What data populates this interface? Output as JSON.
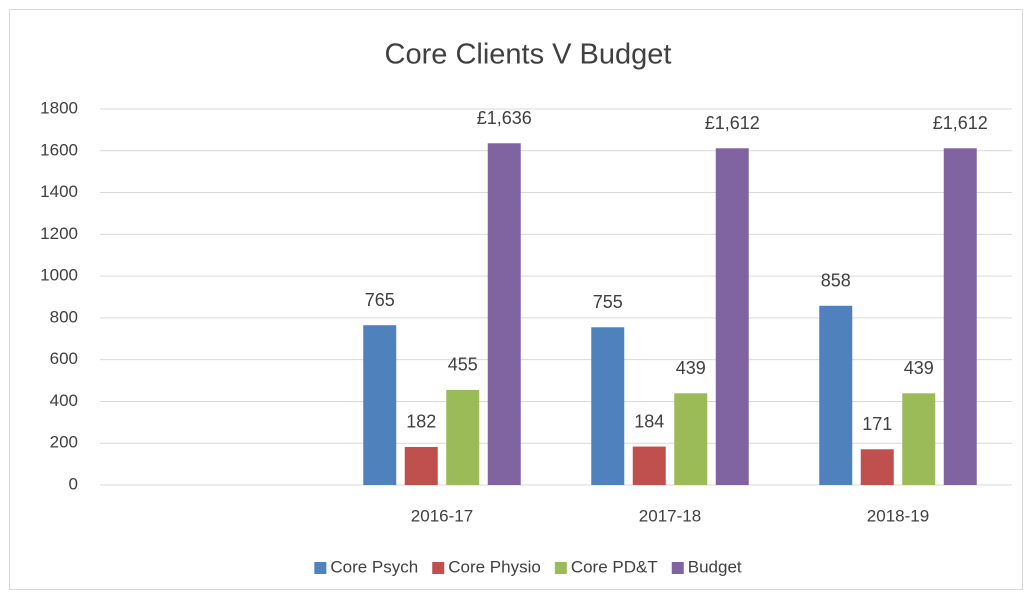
{
  "chart_data": {
    "type": "bar",
    "title": "Core Clients V Budget",
    "categories": [
      null,
      "2016-17",
      "2017-18",
      "2018-19"
    ],
    "series": [
      {
        "name": "Core Psych",
        "color": "#4f81bd",
        "values": [
          null,
          765,
          755,
          858
        ]
      },
      {
        "name": "Core Physio",
        "color": "#c0504d",
        "values": [
          null,
          182,
          184,
          171
        ]
      },
      {
        "name": "Core PD&T",
        "color": "#9bbb59",
        "values": [
          null,
          455,
          439,
          439
        ]
      },
      {
        "name": "Budget",
        "color": "#8064a2",
        "values": [
          null,
          1636,
          1612,
          1612
        ],
        "value_labels": [
          null,
          "£1,636",
          "£1,612",
          "£1,612"
        ]
      }
    ],
    "ylim": [
      0,
      1800
    ],
    "yticks": [
      0,
      200,
      400,
      600,
      800,
      1000,
      1200,
      1400,
      1600,
      1800
    ],
    "grid": true,
    "legend": "bottom"
  }
}
